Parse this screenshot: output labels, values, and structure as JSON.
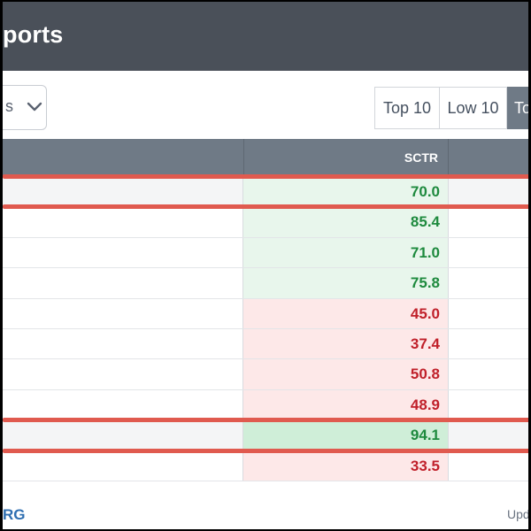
{
  "header": {
    "title": "ports"
  },
  "filter": {
    "value": "s"
  },
  "buttons": [
    {
      "label": "Top 10",
      "active": false
    },
    {
      "label": "Low 10",
      "active": false
    },
    {
      "label": "To",
      "active": true
    }
  ],
  "table": {
    "columns": [
      "",
      "SCTR",
      ""
    ],
    "rows": [
      {
        "sctr": "70.0",
        "status": "positive",
        "highlighted": true
      },
      {
        "sctr": "85.4",
        "status": "positive",
        "highlighted": false
      },
      {
        "sctr": "71.0",
        "status": "positive",
        "highlighted": false
      },
      {
        "sctr": "75.8",
        "status": "positive",
        "highlighted": false
      },
      {
        "sctr": "45.0",
        "status": "negative",
        "highlighted": false
      },
      {
        "sctr": "37.4",
        "status": "negative",
        "highlighted": false
      },
      {
        "sctr": "50.8",
        "status": "negative",
        "highlighted": false
      },
      {
        "sctr": "48.9",
        "status": "negative",
        "highlighted": false
      },
      {
        "sctr": "94.1",
        "status": "positive-strong",
        "highlighted": true
      },
      {
        "sctr": "33.5",
        "status": "negative",
        "highlighted": false
      }
    ]
  },
  "footer": {
    "left": "RG",
    "right": "Upd"
  },
  "colors": {
    "header_bg": "#4a5059",
    "table_header_bg": "#6f7a86",
    "positive": "#1e8a3e",
    "negative": "#c0202a",
    "highlight": "#e05a4f",
    "link": "#2f6fb1"
  },
  "icons": {
    "dropdown": "chevron-down-icon"
  }
}
